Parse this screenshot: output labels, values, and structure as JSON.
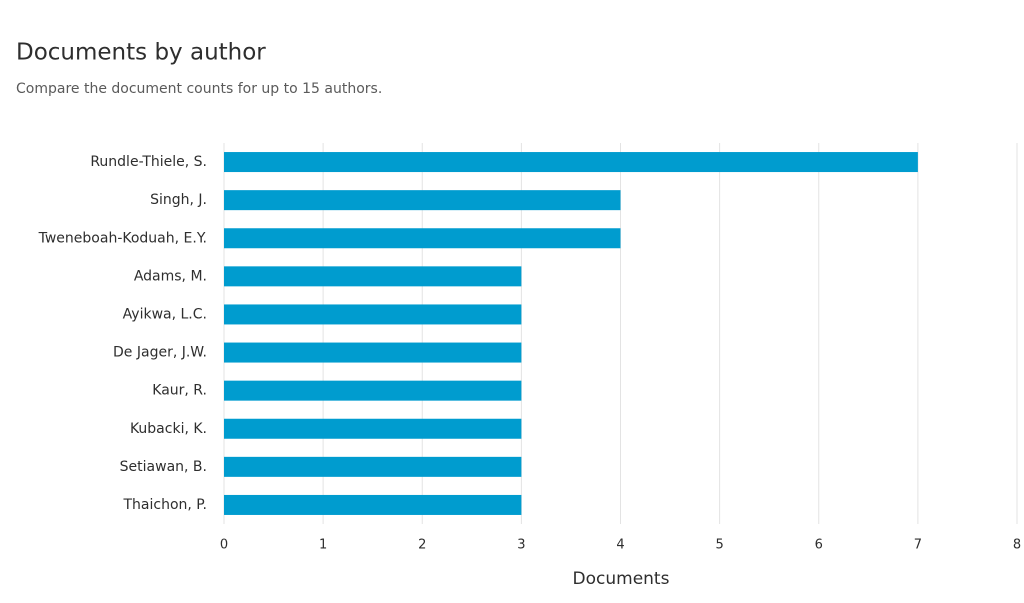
{
  "chart_data": {
    "type": "bar",
    "orientation": "horizontal",
    "title": "Documents by author",
    "subtitle": "Compare the document counts for up to 15 authors.",
    "x_label": "Documents",
    "categories": [
      "Rundle-Thiele, S.",
      "Singh, J.",
      "Tweneboah-Koduah, E.Y.",
      "Adams, M.",
      "Ayikwa, L.C.",
      "De Jager, J.W.",
      "Kaur, R.",
      "Kubacki, K.",
      "Setiawan, B.",
      "Thaichon, P."
    ],
    "values": [
      7,
      4,
      4,
      3,
      3,
      3,
      3,
      3,
      3,
      3
    ],
    "color": "#009ccf",
    "xlim": [
      0,
      8
    ],
    "xticks": [
      0,
      1,
      2,
      3,
      4,
      5,
      6,
      7,
      8
    ],
    "grid": true
  }
}
